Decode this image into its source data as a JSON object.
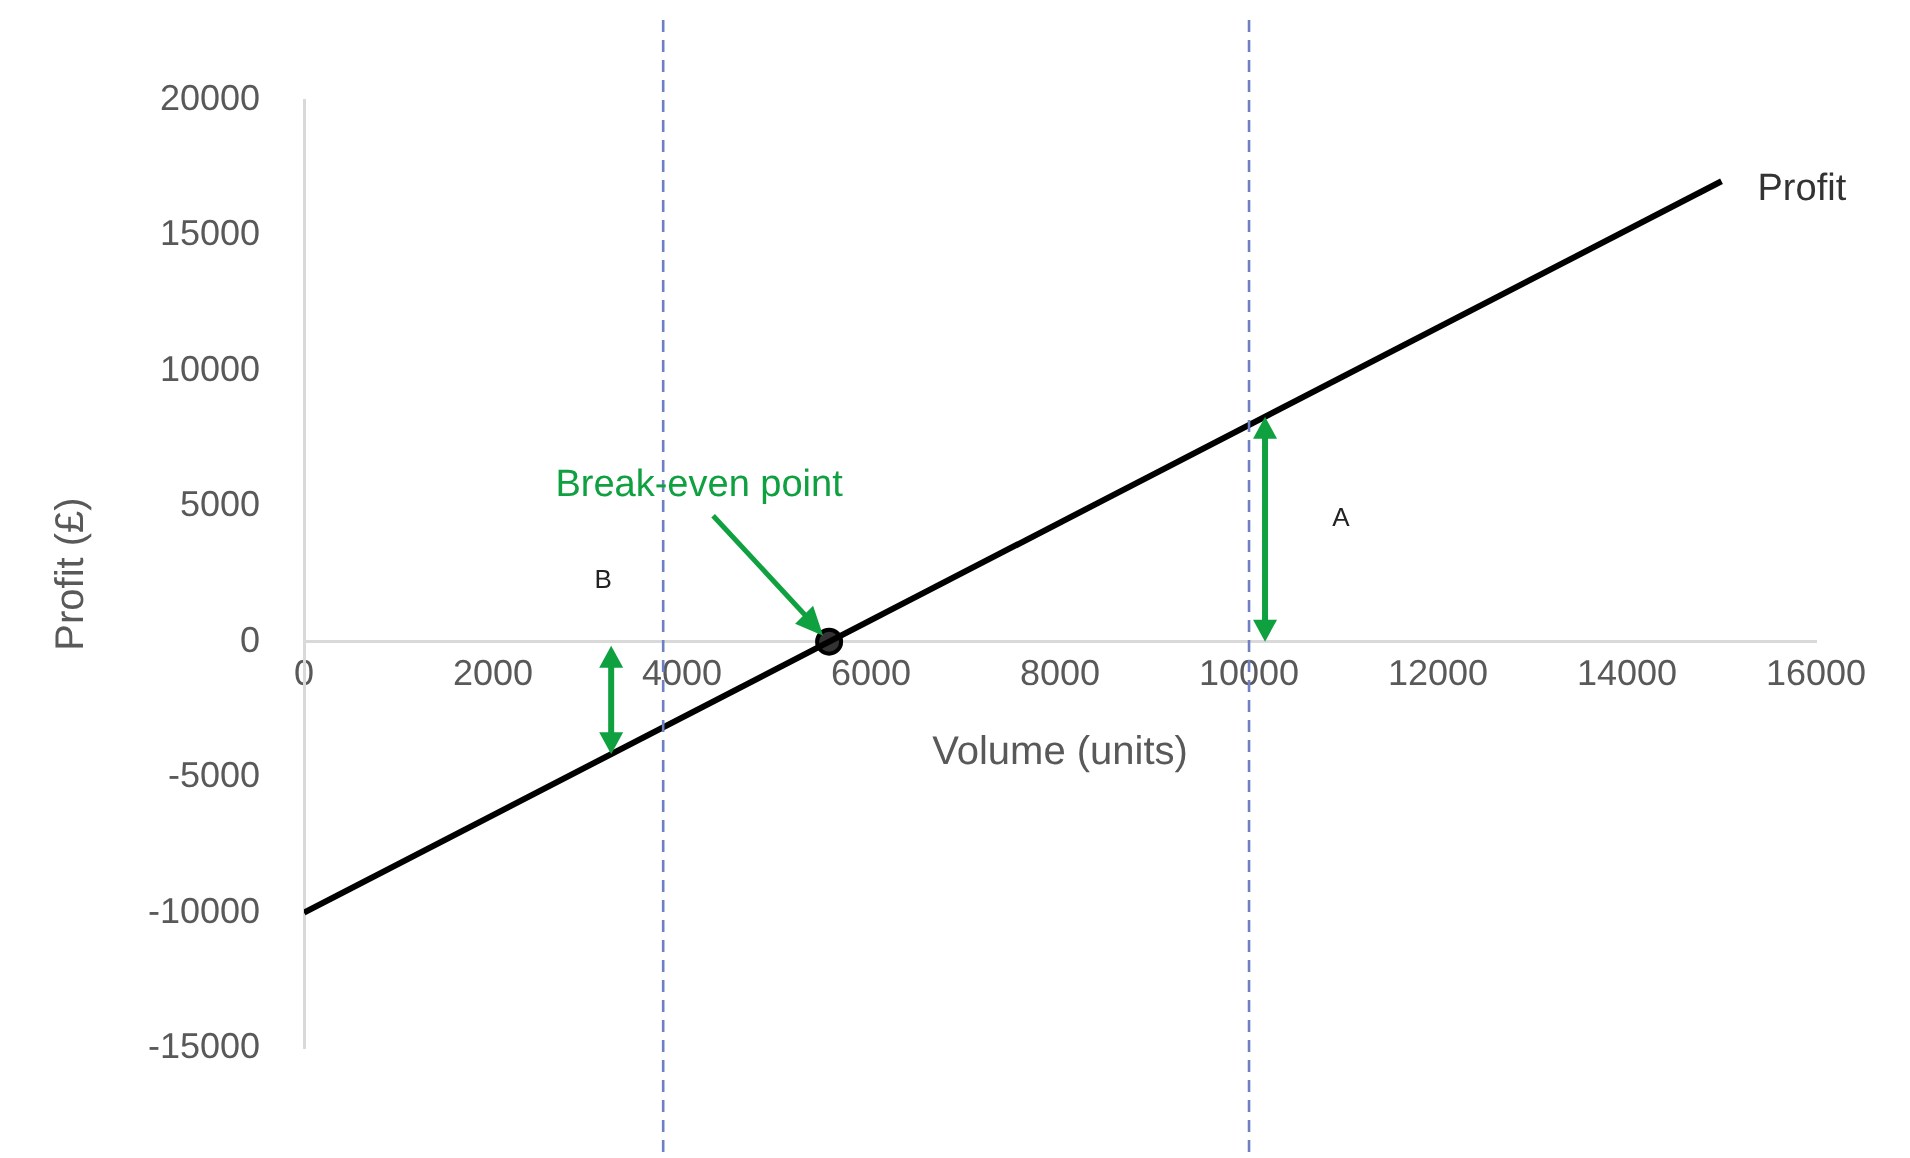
{
  "chart_data": {
    "type": "line",
    "xlabel": "Volume (units)",
    "ylabel": "Profit (£)",
    "xlim": [
      0,
      16000
    ],
    "xticks": [
      0,
      2000,
      4000,
      6000,
      8000,
      10000,
      12000,
      14000,
      16000
    ],
    "ylim": [
      -15000,
      20000
    ],
    "yticks": [
      -15000,
      -10000,
      -5000,
      0,
      5000,
      10000,
      15000,
      20000
    ],
    "grid": false,
    "legend": false,
    "series": [
      {
        "name": "Profit",
        "color": "#000000",
        "x": [
          0,
          15000
        ],
        "values": [
          -10000,
          17000
        ],
        "marker": "none",
        "line_style": "solid"
      },
      {
        "type": "scatter",
        "color": "#000000",
        "x": [
          5556
        ],
        "values": [
          0
        ],
        "marker": "circle"
      }
    ],
    "ref_lines": [
      {
        "axis": "x",
        "value": 3800,
        "color": "#6f7fc4",
        "line_style": "dashed"
      },
      {
        "axis": "x",
        "value": 10000,
        "color": "#6f7fc4",
        "line_style": "dashed"
      }
    ],
    "annotations": [
      "Break-even point",
      "A",
      "B"
    ]
  }
}
